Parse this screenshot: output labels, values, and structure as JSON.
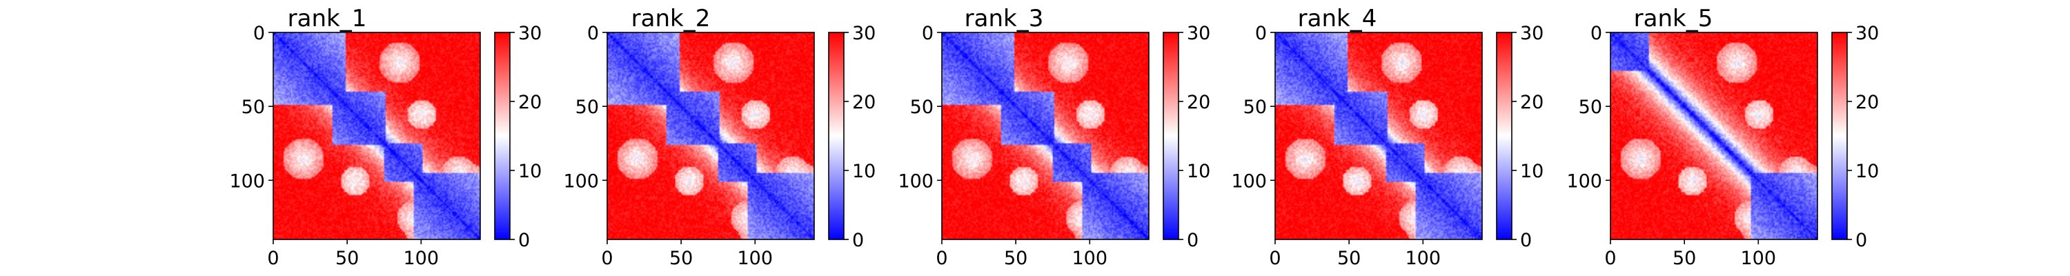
{
  "chart_data": [
    {
      "type": "heatmap",
      "title": "rank_1",
      "x_ticks": [
        0,
        50,
        100
      ],
      "y_ticks": [
        0,
        50,
        100
      ],
      "xlim": [
        0,
        140
      ],
      "ylim": [
        140,
        0
      ],
      "colorbar": {
        "cmap": "bwr",
        "range": [
          0,
          30
        ],
        "ticks": [
          0,
          10,
          20,
          30
        ]
      },
      "diagonal_blocks": [
        [
          0,
          48
        ],
        [
          40,
          75
        ],
        [
          75,
          100
        ],
        [
          95,
          140
        ]
      ]
    },
    {
      "type": "heatmap",
      "title": "rank_2",
      "x_ticks": [
        0,
        50,
        100
      ],
      "y_ticks": [
        0,
        50,
        100
      ],
      "xlim": [
        0,
        140
      ],
      "ylim": [
        140,
        0
      ],
      "colorbar": {
        "cmap": "bwr",
        "range": [
          0,
          30
        ],
        "ticks": [
          0,
          10,
          20,
          30
        ]
      },
      "diagonal_blocks": [
        [
          0,
          48
        ],
        [
          40,
          75
        ],
        [
          75,
          100
        ],
        [
          95,
          140
        ]
      ]
    },
    {
      "type": "heatmap",
      "title": "rank_3",
      "x_ticks": [
        0,
        50,
        100
      ],
      "y_ticks": [
        0,
        50,
        100
      ],
      "xlim": [
        0,
        140
      ],
      "ylim": [
        140,
        0
      ],
      "colorbar": {
        "cmap": "bwr",
        "range": [
          0,
          30
        ],
        "ticks": [
          0,
          10,
          20,
          30
        ]
      },
      "diagonal_blocks": [
        [
          0,
          48
        ],
        [
          40,
          75
        ],
        [
          75,
          100
        ],
        [
          95,
          140
        ]
      ]
    },
    {
      "type": "heatmap",
      "title": "rank_4",
      "x_ticks": [
        0,
        50,
        100
      ],
      "y_ticks": [
        0,
        50,
        100
      ],
      "xlim": [
        0,
        140
      ],
      "ylim": [
        140,
        0
      ],
      "colorbar": {
        "cmap": "bwr",
        "range": [
          0,
          30
        ],
        "ticks": [
          0,
          10,
          20,
          30
        ]
      },
      "diagonal_blocks": [
        [
          0,
          48
        ],
        [
          40,
          75
        ],
        [
          75,
          100
        ],
        [
          95,
          140
        ]
      ]
    },
    {
      "type": "heatmap",
      "title": "rank_5",
      "x_ticks": [
        0,
        50,
        100
      ],
      "y_ticks": [
        0,
        50,
        100
      ],
      "xlim": [
        0,
        140
      ],
      "ylim": [
        140,
        0
      ],
      "colorbar": {
        "cmap": "bwr",
        "range": [
          0,
          30
        ],
        "ticks": [
          0,
          10,
          20,
          30
        ]
      },
      "diagonal_blocks": [
        [
          0,
          25
        ],
        [
          95,
          140
        ]
      ]
    }
  ],
  "colors": {
    "low": "#0000ff",
    "mid": "#ffffff",
    "high": "#ff0000"
  }
}
